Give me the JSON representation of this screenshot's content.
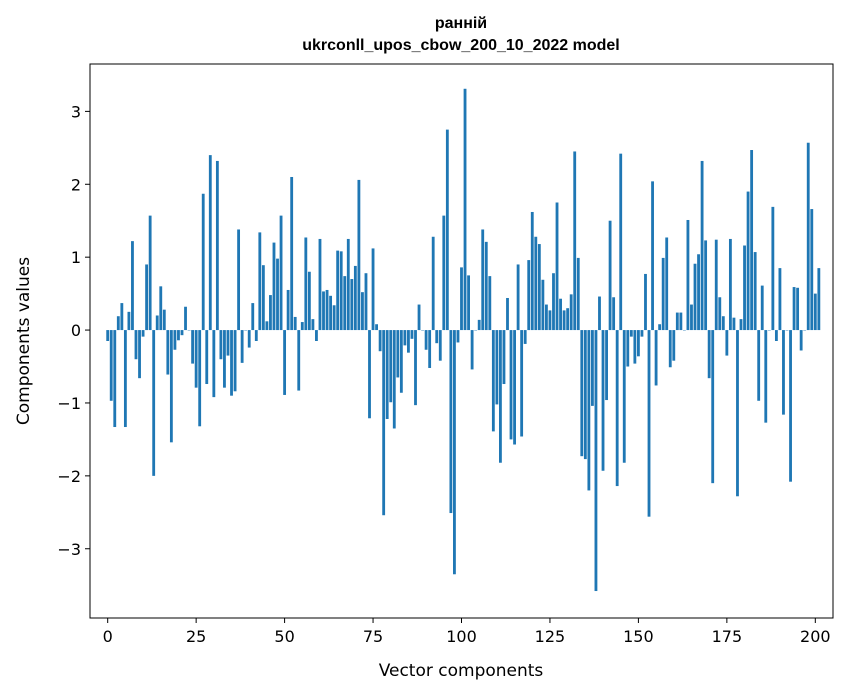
{
  "chart_data": {
    "type": "bar",
    "title": "ранній",
    "subtitle": "ukrconll_upos_cbow_200_10_2022 model",
    "xlabel": "Vector components",
    "ylabel": "Components values",
    "xlim": [
      -5,
      205
    ],
    "ylim": [
      -3.95,
      3.65
    ],
    "xticks": [
      0,
      25,
      50,
      75,
      100,
      125,
      150,
      175,
      200
    ],
    "yticks": [
      -3,
      -2,
      -1,
      0,
      1,
      2,
      3
    ],
    "bar_color": "#1f77b4",
    "grid": false,
    "legend": "none",
    "values": [
      -0.15,
      -0.97,
      -1.33,
      0.19,
      0.37,
      -1.33,
      0.25,
      1.22,
      -0.4,
      -0.66,
      -0.09,
      0.9,
      1.57,
      -2.0,
      0.2,
      0.6,
      0.28,
      -0.61,
      -1.54,
      -0.27,
      -0.14,
      -0.07,
      0.32,
      0.0,
      -0.46,
      -0.79,
      -1.32,
      1.87,
      -0.74,
      2.4,
      -0.92,
      2.32,
      -0.4,
      -0.79,
      -0.35,
      -0.9,
      -0.84,
      1.38,
      -0.45,
      0.0,
      -0.24,
      0.37,
      -0.15,
      1.34,
      0.89,
      0.12,
      0.48,
      1.2,
      0.98,
      1.57,
      -0.89,
      0.55,
      2.1,
      0.18,
      -0.83,
      0.11,
      1.27,
      0.8,
      0.15,
      -0.15,
      1.25,
      0.53,
      0.55,
      0.47,
      0.34,
      1.09,
      1.08,
      0.74,
      1.25,
      0.7,
      0.88,
      2.06,
      0.52,
      0.78,
      -1.21,
      1.12,
      0.08,
      -0.29,
      -2.54,
      -1.22,
      -0.99,
      -1.35,
      -0.65,
      -0.86,
      -0.21,
      -0.31,
      -0.12,
      -1.03,
      0.35,
      0.0,
      -0.27,
      -0.52,
      1.28,
      -0.18,
      -0.42,
      1.57,
      2.75,
      -2.51,
      -3.35,
      -0.17,
      0.86,
      3.31,
      0.75,
      -0.54,
      0.0,
      0.14,
      1.38,
      1.21,
      0.74,
      -1.39,
      -1.02,
      -1.82,
      -0.74,
      0.44,
      -1.5,
      -1.57,
      0.9,
      -1.46,
      -0.19,
      0.96,
      1.62,
      1.28,
      1.18,
      0.69,
      0.35,
      0.27,
      0.78,
      1.75,
      0.43,
      0.27,
      0.3,
      0.49,
      2.45,
      0.99,
      -1.73,
      -1.77,
      -2.2,
      -1.04,
      -3.58,
      0.46,
      -1.93,
      -0.96,
      1.5,
      0.45,
      -2.14,
      2.42,
      -1.82,
      -0.5,
      -0.09,
      -0.46,
      -0.36,
      -0.09,
      0.77,
      -2.56,
      2.04,
      -0.76,
      0.08,
      0.99,
      1.27,
      -0.51,
      -0.42,
      0.24,
      0.24,
      0.0,
      1.51,
      0.35,
      0.91,
      1.04,
      2.32,
      1.23,
      -0.66,
      -2.1,
      1.24,
      0.45,
      0.19,
      -0.35,
      1.25,
      0.17,
      -2.28,
      0.15,
      1.16,
      1.9,
      2.47,
      1.07,
      -0.97,
      0.61,
      -1.27,
      0.0,
      1.69,
      -0.15,
      0.85,
      -1.16,
      0.0,
      -2.08,
      0.59,
      0.58,
      -0.28,
      0.0,
      2.57,
      1.66,
      0.5,
      0.85
    ]
  }
}
